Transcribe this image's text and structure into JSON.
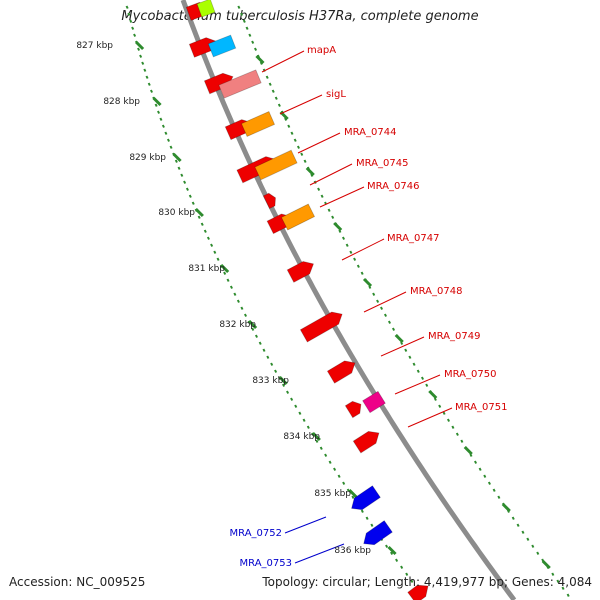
{
  "title": "Mycobacterium tuberculosis H37Ra, complete genome",
  "accession": "Accession: NC_009525",
  "summary": "Topology: circular; Length: 4,419,977 bp; Genes: 4,084",
  "colors": {
    "backbone": "#8c8c8c",
    "tick_green": "#2e8b2e",
    "label_red": "#d60000",
    "label_blue": "#0000cc",
    "red": "#ee0000",
    "orange": "#ff9900",
    "salmon": "#f08080",
    "cyan": "#00b7ff",
    "lime": "#aaff00",
    "magenta": "#ee0088",
    "blue": "#0000ee"
  },
  "kbp_labels": [
    "827 kbp",
    "828 kbp",
    "829 kbp",
    "830 kbp",
    "831 kbp",
    "832 kbp",
    "833 kbp",
    "834 kbp",
    "835 kbp",
    "836 kbp"
  ],
  "gene_labels": [
    "mapA",
    "sigL",
    "MRA_0744",
    "MRA_0745",
    "MRA_0746",
    "MRA_0747",
    "MRA_0748",
    "MRA_0749",
    "MRA_0750",
    "MRA_0751",
    "MRA_0752",
    "MRA_0753"
  ]
}
